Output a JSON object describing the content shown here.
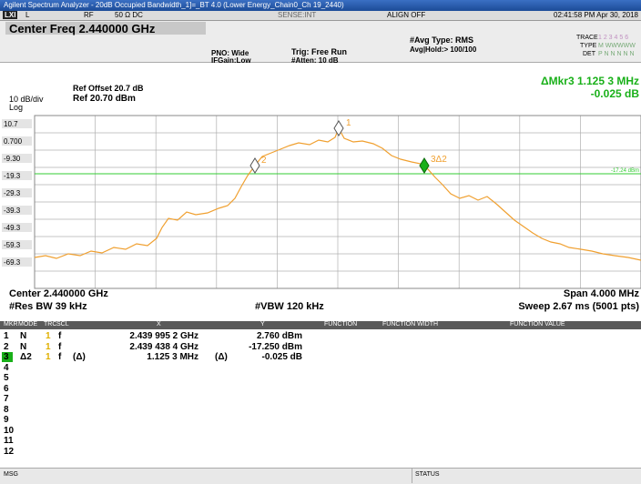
{
  "title_bar": {
    "text": "Agilent Spectrum Analyzer - 20dB Occupied Bandwidth_1]=_BT 4.0 (Lower Energy_Chain0_Ch 19_2440)"
  },
  "status_row": {
    "lxi": "LXI",
    "mode": "L",
    "input": "RF",
    "coupling": "50 Ω  DC",
    "sense": "SENSE:INT",
    "align": "ALIGN OFF",
    "datetime": "02:41:58 PM Apr 30, 2018"
  },
  "settings": {
    "center_freq": "Center Freq 2.440000 GHz",
    "pno": "PNO: Wide",
    "ifgain": "IFGain:Low",
    "trig": "Trig: Free Run",
    "atten": "#Atten: 10 dB",
    "avg_type": "#Avg Type: RMS",
    "avg_hold": "Avg|Hold:> 100/100",
    "trace_label": "TRACE",
    "trace_values": "1 2 3 4 5 6",
    "type_label": "TYPE",
    "type_values": "M WWWWW",
    "det_label": "DET",
    "det_values": "P N N N N N"
  },
  "graph": {
    "ref_offset": "Ref Offset 20.7 dB",
    "scale": "10 dB/div",
    "ref_level": "Ref 20.70 dBm",
    "log": "Log",
    "delta_marker": "ΔMkr3 1.125 3 MHz",
    "delta_value": "-0.025 dB",
    "y_labels": [
      "10.7",
      "0.700",
      "-9.30",
      "-19.3",
      "-29.3",
      "-39.3",
      "-49.3",
      "-59.3",
      "-69.3"
    ],
    "display_line": "-17.24 dBm",
    "marker_labels": [
      "1",
      "2",
      "3Δ2"
    ]
  },
  "footer": {
    "center": "Center 2.440000 GHz",
    "res_bw": "#Res BW 39 kHz",
    "vbw": "#VBW 120 kHz",
    "span": "Span 4.000 MHz",
    "sweep": "Sweep  2.67 ms (5001 pts)"
  },
  "marker_table": {
    "headers": {
      "mkr": "MKR",
      "mode": "MODE",
      "trc": "TRC",
      "scl": "SCL",
      "x": "X",
      "y": "Y",
      "function": "FUNCTION",
      "function_width": "FUNCTION WIDTH",
      "function_value": "FUNCTION VALUE"
    },
    "rows": [
      {
        "mkr": "1",
        "mode": "N",
        "trc": "1",
        "scl": "f",
        "x": "2.439 995 2 GHz",
        "y": "2.760 dBm"
      },
      {
        "mkr": "2",
        "mode": "N",
        "trc": "1",
        "scl": "f",
        "x": "2.439 438 4 GHz",
        "y": "-17.250 dBm"
      },
      {
        "mkr": "3",
        "mode": "Δ2",
        "trc": "1",
        "scl": "f",
        "x_fn": "(Δ)",
        "x": "1.125 3 MHz",
        "y_fn": "(Δ)",
        "y": "-0.025 dB"
      },
      {
        "mkr": "4"
      },
      {
        "mkr": "5"
      },
      {
        "mkr": "6"
      },
      {
        "mkr": "7"
      },
      {
        "mkr": "8"
      },
      {
        "mkr": "9"
      },
      {
        "mkr": "10"
      },
      {
        "mkr": "11"
      },
      {
        "mkr": "12"
      }
    ]
  },
  "status_bar": {
    "msg": "MSG",
    "status": "STATUS"
  }
}
